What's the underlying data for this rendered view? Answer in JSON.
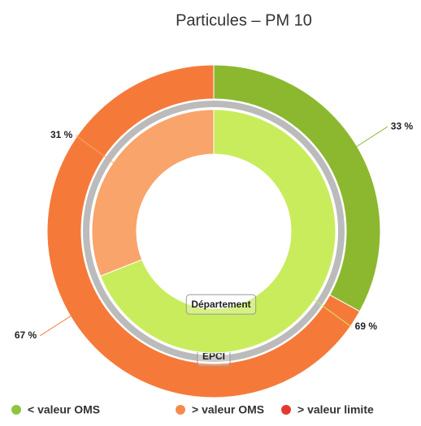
{
  "chart_data": {
    "type": "donut",
    "title": "Particules – PM 10",
    "categories": [
      "< valeur OMS",
      "> valeur OMS",
      "> valeur limite"
    ],
    "colors": [
      "#8cc63f",
      "#f58a4b",
      "#e2382f"
    ],
    "series": [
      {
        "name": "EPCI",
        "colors": [
          "#8cb82f",
          "#f57a3a",
          "#e2382f"
        ],
        "values": [
          33,
          67,
          0
        ],
        "value_labels": [
          "33 %",
          "67 %",
          null
        ]
      },
      {
        "name": "Département",
        "colors": [
          "#c9ec5c",
          "#f8a46a",
          "#e2382f"
        ],
        "values": [
          69,
          31,
          0
        ],
        "value_labels": [
          "69 %",
          "31 %",
          null
        ]
      }
    ]
  }
}
